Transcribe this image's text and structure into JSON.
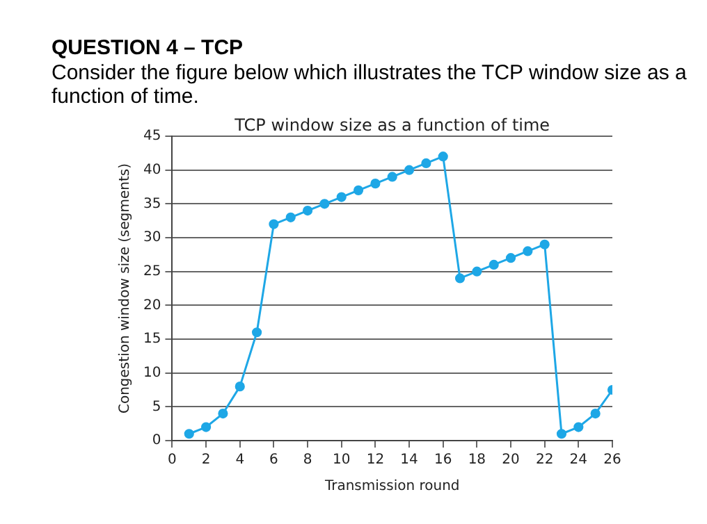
{
  "chart_data": {
    "type": "line",
    "title": "QUESTION 4 – TCP",
    "subtitle": "Consider the figure below which illustrates the TCP window size as a function of time.",
    "annotations": [
      "TCP window size as a function of time"
    ],
    "xlabel": "Transmission round",
    "ylabel": "Congestion window size (segments)",
    "x": [
      1,
      2,
      3,
      4,
      5,
      6,
      7,
      8,
      9,
      10,
      11,
      12,
      13,
      14,
      15,
      16,
      17,
      18,
      19,
      20,
      21,
      22,
      23,
      24,
      25,
      26
    ],
    "series": [
      {
        "color": "#1ea7e6",
        "values": [
          1,
          2,
          4,
          8,
          16,
          32,
          33,
          34,
          35,
          36,
          37,
          38,
          39,
          40,
          41,
          42,
          24,
          25,
          26,
          27,
          28,
          29,
          1,
          2,
          4,
          7.5
        ]
      }
    ],
    "xlim": [
      0,
      26
    ],
    "xticks": [
      0,
      2,
      4,
      6,
      8,
      10,
      12,
      14,
      16,
      18,
      20,
      22,
      24,
      26
    ],
    "ylim": [
      0,
      45
    ],
    "yticks": [
      0,
      5,
      10,
      15,
      20,
      25,
      30,
      35,
      40,
      45
    ],
    "grid": "y",
    "legend": false,
    "marker": "circle",
    "line_style": "solid"
  }
}
